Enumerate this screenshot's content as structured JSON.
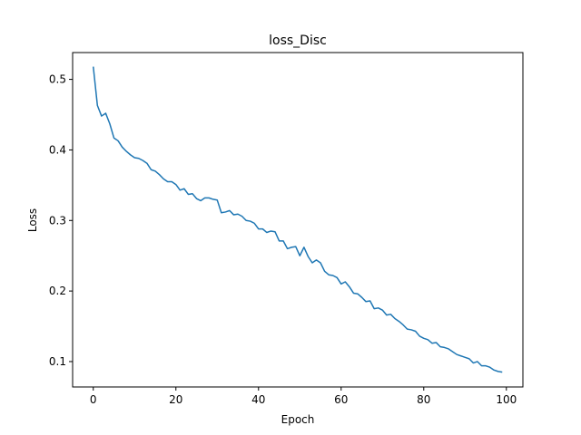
{
  "chart_data": {
    "type": "line",
    "title": "loss_Disc",
    "xlabel": "Epoch",
    "ylabel": "Loss",
    "xlim": [
      -5,
      104
    ],
    "ylim": [
      0.064,
      0.538
    ],
    "xticks": [
      0,
      20,
      40,
      60,
      80,
      100
    ],
    "yticks": [
      0.1,
      0.2,
      0.3,
      0.4,
      0.5
    ],
    "xtick_labels": [
      "0",
      "20",
      "40",
      "60",
      "80",
      "100"
    ],
    "ytick_labels": [
      "0.1",
      "0.2",
      "0.3",
      "0.4",
      "0.5"
    ],
    "grid": false,
    "series_color": "#1f77b4",
    "series": [
      {
        "x": [
          0,
          1,
          2,
          3,
          4,
          5,
          6,
          7,
          8,
          9,
          10,
          11,
          12,
          13,
          14,
          15,
          16,
          17,
          18,
          19,
          20,
          21,
          22,
          23,
          24,
          25,
          26,
          27,
          28,
          29,
          30,
          31,
          32,
          33,
          34,
          35,
          36,
          37,
          38,
          39,
          40,
          41,
          42,
          43,
          44,
          45,
          46,
          47,
          48,
          49,
          50,
          51,
          52,
          53,
          54,
          55,
          56,
          57,
          58,
          59,
          60,
          61,
          62,
          63,
          64,
          65,
          66,
          67,
          68,
          69,
          70,
          71,
          72,
          73,
          74,
          75,
          76,
          77,
          78,
          79,
          80,
          81,
          82,
          83,
          84,
          85,
          86,
          87,
          88,
          89,
          90,
          91,
          92,
          93,
          94,
          95,
          96,
          97,
          98,
          99
        ],
        "values": [
          0.518,
          0.463,
          0.448,
          0.452,
          0.437,
          0.417,
          0.413,
          0.404,
          0.398,
          0.393,
          0.389,
          0.388,
          0.385,
          0.381,
          0.372,
          0.37,
          0.365,
          0.359,
          0.355,
          0.355,
          0.351,
          0.343,
          0.345,
          0.337,
          0.338,
          0.331,
          0.328,
          0.332,
          0.332,
          0.33,
          0.329,
          0.311,
          0.312,
          0.314,
          0.308,
          0.309,
          0.306,
          0.3,
          0.299,
          0.296,
          0.288,
          0.288,
          0.283,
          0.285,
          0.284,
          0.271,
          0.271,
          0.26,
          0.262,
          0.263,
          0.25,
          0.262,
          0.249,
          0.24,
          0.244,
          0.24,
          0.228,
          0.223,
          0.222,
          0.219,
          0.21,
          0.213,
          0.206,
          0.197,
          0.196,
          0.191,
          0.185,
          0.186,
          0.175,
          0.176,
          0.173,
          0.166,
          0.167,
          0.161,
          0.157,
          0.152,
          0.146,
          0.145,
          0.143,
          0.136,
          0.133,
          0.131,
          0.126,
          0.127,
          0.121,
          0.12,
          0.118,
          0.114,
          0.11,
          0.108,
          0.106,
          0.104,
          0.098,
          0.1,
          0.094,
          0.094,
          0.092,
          0.088,
          0.086,
          0.085
        ]
      }
    ]
  }
}
